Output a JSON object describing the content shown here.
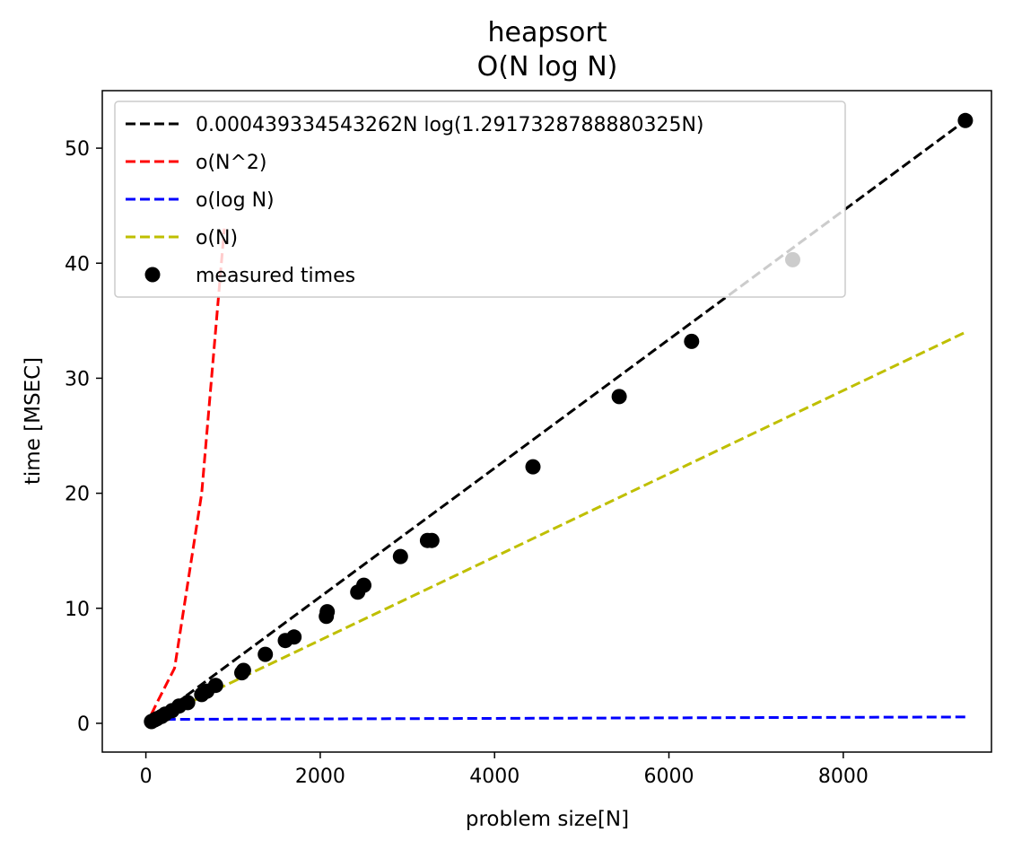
{
  "chart_data": {
    "type": "line",
    "title": "heapsort",
    "subtitle": "O(N log N)",
    "xlabel": "problem size[N]",
    "ylabel": "time [MSEC]",
    "xlim": [
      -500,
      9700
    ],
    "ylim": [
      -2.5,
      55
    ],
    "xticks": [
      0,
      2000,
      4000,
      6000,
      8000
    ],
    "yticks": [
      0,
      10,
      20,
      30,
      40,
      50
    ],
    "grid": false,
    "legend_position": "upper-left",
    "series": [
      {
        "name": "0.000439334543262N log(1.2917328788880325N)",
        "style": "dashed",
        "color": "#000000",
        "x": [
          64,
          9400
        ],
        "y": [
          0.16,
          52.4
        ]
      },
      {
        "name": "o(N^2)",
        "style": "dashed",
        "color": "#ff0000",
        "x": [
          64,
          128,
          330,
          640,
          900
        ],
        "y": [
          0.8,
          1.8,
          4.8,
          20.0,
          43.0
        ]
      },
      {
        "name": "o(log N)",
        "style": "dashed",
        "color": "#0000ff",
        "x": [
          64,
          300,
          9400
        ],
        "y": [
          0.3,
          0.35,
          0.55
        ]
      },
      {
        "name": "o(N)",
        "style": "dashed",
        "color": "#bfbf00",
        "x": [
          64,
          9400
        ],
        "y": [
          0.23,
          34.0
        ]
      },
      {
        "name": "measured times",
        "style": "markers",
        "color": "#000000",
        "x": [
          64,
          100,
          128,
          180,
          220,
          300,
          380,
          480,
          640,
          700,
          800,
          1100,
          1120,
          1370,
          1600,
          1700,
          2070,
          2080,
          2430,
          2500,
          2920,
          3230,
          3280,
          4440,
          5430,
          6260,
          7420,
          9400
        ],
        "y": [
          0.15,
          0.3,
          0.4,
          0.6,
          0.8,
          1.1,
          1.5,
          1.8,
          2.5,
          2.8,
          3.3,
          4.4,
          4.6,
          6.0,
          7.2,
          7.5,
          9.3,
          9.7,
          11.4,
          12.0,
          14.5,
          15.9,
          15.9,
          22.3,
          28.4,
          33.2,
          40.3,
          52.4
        ]
      }
    ]
  }
}
